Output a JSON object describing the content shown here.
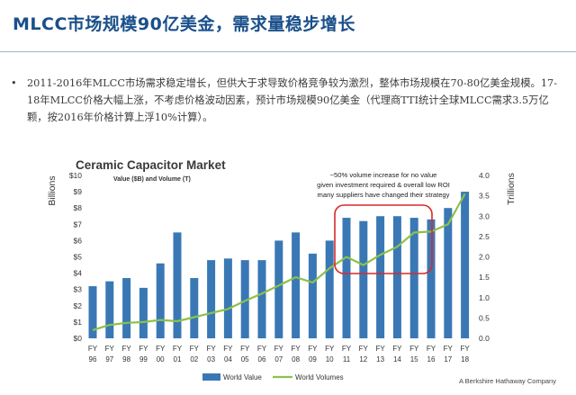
{
  "slide": {
    "title": "MLCC市场规模90亿美金，需求量稳步增长",
    "bullet": "2011-2016年MLCC市场需求稳定增长，但供大于求导致价格竞争较为激烈，整体市场规模在70-80亿美金规模。17-18年MLCC价格大幅上涨，不考虑价格波动因素，预计市场规模90亿美金（代理商TTI统计全球MLCC需求3.5万亿颗，按2016年价格计算上浮10%计算）。"
  },
  "chart_data": {
    "type": "bar",
    "title": "Ceramic Capacitor Market",
    "subtitle": "Value ($B) and Volume (T)",
    "ylabel_left": "Billions",
    "ylabel_right": "Trillions",
    "categories": [
      [
        "FY",
        "96"
      ],
      [
        "FY",
        "97"
      ],
      [
        "FY",
        "98"
      ],
      [
        "FY",
        "99"
      ],
      [
        "FY",
        "00"
      ],
      [
        "FY",
        "01"
      ],
      [
        "FY",
        "02"
      ],
      [
        "FY",
        "03"
      ],
      [
        "FY",
        "04"
      ],
      [
        "FY",
        "05"
      ],
      [
        "FY",
        "06"
      ],
      [
        "FY",
        "07"
      ],
      [
        "FY",
        "08"
      ],
      [
        "FY",
        "09"
      ],
      [
        "FY",
        "10"
      ],
      [
        "FY",
        "11"
      ],
      [
        "FY",
        "12"
      ],
      [
        "FY",
        "13"
      ],
      [
        "FY",
        "14"
      ],
      [
        "FY",
        "15"
      ],
      [
        "FY",
        "16"
      ],
      [
        "FY",
        "17"
      ],
      [
        "FY",
        "18"
      ]
    ],
    "left_ticks": [
      "$0",
      "$1",
      "$2",
      "$3",
      "$4",
      "$5",
      "$6",
      "$7",
      "$8",
      "$9",
      "$10"
    ],
    "right_ticks": [
      "0.0",
      "0.5",
      "1.0",
      "1.5",
      "2.0",
      "2.5",
      "3.0",
      "3.5",
      "4.0"
    ],
    "ylim_left": [
      0,
      10
    ],
    "ylim_right": [
      0,
      4
    ],
    "series": [
      {
        "name": "World Value",
        "kind": "bar",
        "axis": "left",
        "color": "#3a78b5",
        "values": [
          3.2,
          3.5,
          3.7,
          3.1,
          4.6,
          6.5,
          3.7,
          4.8,
          4.9,
          4.8,
          4.8,
          6.0,
          6.5,
          5.2,
          6.0,
          7.4,
          7.2,
          7.5,
          7.5,
          7.4,
          7.3,
          8.0,
          9.0
        ]
      },
      {
        "name": "World Volumes",
        "kind": "line",
        "axis": "right",
        "color": "#8cc14a",
        "values": [
          0.2,
          0.33,
          0.38,
          0.4,
          0.45,
          0.42,
          0.52,
          0.62,
          0.72,
          0.92,
          1.1,
          1.3,
          1.5,
          1.37,
          1.72,
          2.0,
          1.8,
          2.05,
          2.25,
          2.6,
          2.62,
          2.8,
          3.55
        ]
      }
    ],
    "annotation": {
      "lines": [
        "~50% volume increase for no value",
        "given investment required & overall low ROI",
        "many suppliers have changed their strategy"
      ],
      "highlight_color": "#d9292b"
    },
    "legend_position": "bottom",
    "grid": false,
    "credit": "A Berkshire Hathaway Company"
  }
}
